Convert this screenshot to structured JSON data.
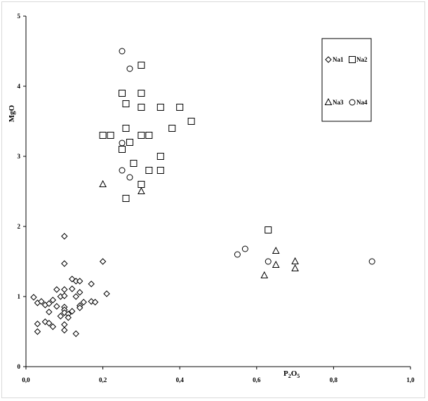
{
  "chart_data": {
    "type": "scatter",
    "xlabel_main": "P",
    "xlabel_sub": "2",
    "xlabel_main2": "O",
    "xlabel_sub2": "5",
    "ylabel": "MgO",
    "xlim": [
      0,
      1
    ],
    "ylim": [
      0,
      5
    ],
    "x_ticks": [
      "0,0",
      "0,2",
      "0,4",
      "0,6",
      "0,8",
      "1,0"
    ],
    "x_tick_values": [
      0,
      0.2,
      0.4,
      0.6,
      0.8,
      1.0
    ],
    "y_ticks": [
      "0",
      "1",
      "2",
      "3",
      "4",
      "5"
    ],
    "y_tick_values": [
      0,
      1,
      2,
      3,
      4,
      5
    ],
    "grid": false,
    "legend_position": "top-right",
    "series": [
      {
        "name": "Na1",
        "marker": "diamond",
        "points": [
          [
            0.02,
            0.99
          ],
          [
            0.03,
            0.91
          ],
          [
            0.04,
            0.93
          ],
          [
            0.05,
            0.88
          ],
          [
            0.06,
            0.9
          ],
          [
            0.07,
            0.95
          ],
          [
            0.08,
            1.1
          ],
          [
            0.08,
            0.86
          ],
          [
            0.09,
            1.0
          ],
          [
            0.1,
            1.01
          ],
          [
            0.1,
            1.1
          ],
          [
            0.1,
            0.85
          ],
          [
            0.1,
            0.81
          ],
          [
            0.1,
            0.77
          ],
          [
            0.11,
            0.75
          ],
          [
            0.12,
            0.79
          ],
          [
            0.12,
            1.11
          ],
          [
            0.12,
            1.25
          ],
          [
            0.13,
            1.22
          ],
          [
            0.13,
            1.0
          ],
          [
            0.14,
            1.22
          ],
          [
            0.14,
            1.06
          ],
          [
            0.14,
            0.87
          ],
          [
            0.14,
            0.84
          ],
          [
            0.15,
            0.92
          ],
          [
            0.17,
            1.18
          ],
          [
            0.17,
            0.93
          ],
          [
            0.18,
            0.92
          ],
          [
            0.21,
            1.04
          ],
          [
            0.2,
            1.5
          ],
          [
            0.1,
            1.47
          ],
          [
            0.1,
            1.86
          ],
          [
            0.03,
            0.61
          ],
          [
            0.03,
            0.5
          ],
          [
            0.05,
            0.64
          ],
          [
            0.06,
            0.62
          ],
          [
            0.07,
            0.57
          ],
          [
            0.1,
            0.6
          ],
          [
            0.1,
            0.52
          ],
          [
            0.11,
            0.7
          ],
          [
            0.13,
            0.47
          ],
          [
            0.06,
            0.78
          ],
          [
            0.09,
            0.72
          ]
        ]
      },
      {
        "name": "Na2",
        "marker": "square",
        "points": [
          [
            0.25,
            3.9
          ],
          [
            0.3,
            4.3
          ],
          [
            0.3,
            3.9
          ],
          [
            0.26,
            3.75
          ],
          [
            0.3,
            3.7
          ],
          [
            0.35,
            3.7
          ],
          [
            0.4,
            3.7
          ],
          [
            0.43,
            3.5
          ],
          [
            0.26,
            3.4
          ],
          [
            0.38,
            3.4
          ],
          [
            0.2,
            3.3
          ],
          [
            0.22,
            3.3
          ],
          [
            0.3,
            3.3
          ],
          [
            0.32,
            3.3
          ],
          [
            0.27,
            3.2
          ],
          [
            0.25,
            3.1
          ],
          [
            0.35,
            3.0
          ],
          [
            0.28,
            2.9
          ],
          [
            0.32,
            2.8
          ],
          [
            0.35,
            2.8
          ],
          [
            0.3,
            2.6
          ],
          [
            0.26,
            2.4
          ],
          [
            0.63,
            1.95
          ]
        ]
      },
      {
        "name": "Na3",
        "marker": "triangle",
        "points": [
          [
            0.2,
            2.6
          ],
          [
            0.3,
            2.5
          ],
          [
            0.65,
            1.65
          ],
          [
            0.7,
            1.5
          ],
          [
            0.65,
            1.45
          ],
          [
            0.7,
            1.4
          ],
          [
            0.62,
            1.3
          ]
        ]
      },
      {
        "name": "Na4",
        "marker": "circle",
        "points": [
          [
            0.25,
            4.5
          ],
          [
            0.27,
            4.25
          ],
          [
            0.25,
            3.19
          ],
          [
            0.25,
            2.8
          ],
          [
            0.27,
            2.7
          ],
          [
            0.55,
            1.6
          ],
          [
            0.57,
            1.68
          ],
          [
            0.63,
            1.5
          ],
          [
            0.9,
            1.5
          ]
        ]
      }
    ]
  }
}
